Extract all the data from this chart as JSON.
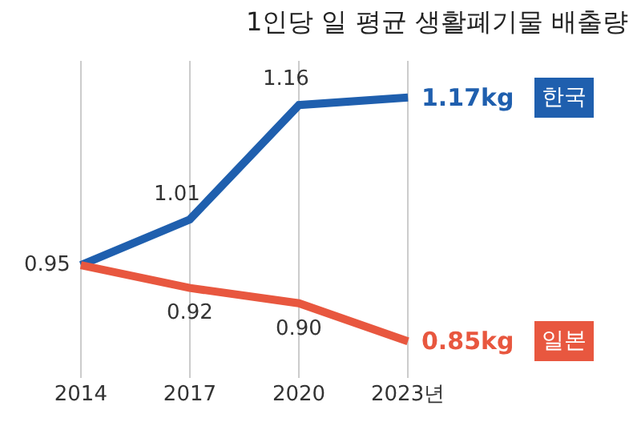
{
  "chart_data": {
    "type": "line",
    "title": "1인당 일 평균 생활폐기물 배출량",
    "categories": [
      "2014",
      "2017",
      "2020",
      "2023년"
    ],
    "series": [
      {
        "name": "한국",
        "color": "#1f5fae",
        "values": [
          0.95,
          1.01,
          1.16,
          1.17
        ],
        "value_labels": [
          "0.95",
          "1.01",
          "1.16",
          "1.17kg"
        ]
      },
      {
        "name": "일본",
        "color": "#e8573f",
        "values": [
          0.95,
          0.92,
          0.9,
          0.85
        ],
        "value_labels": [
          null,
          "0.92",
          "0.90",
          "0.85kg"
        ]
      }
    ],
    "grid": "x",
    "legend": false,
    "marker": "none",
    "line_style": "solid"
  }
}
